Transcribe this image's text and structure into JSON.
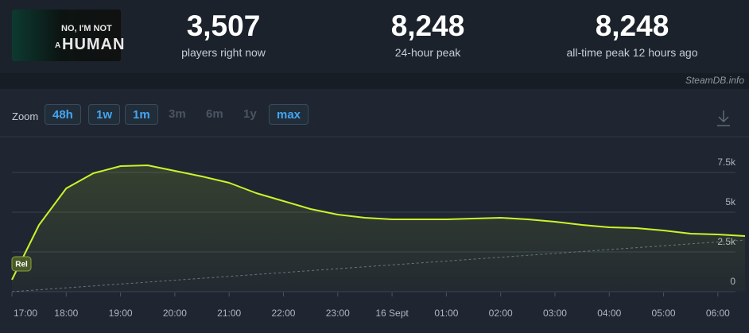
{
  "header": {
    "logo_text": [
      "NO, I'M NOT",
      "A",
      "HUMAN"
    ],
    "stats": [
      {
        "value": "3,507",
        "label": "players right now"
      },
      {
        "value": "8,248",
        "label": "24-hour peak"
      },
      {
        "value": "8,248",
        "label": "all-time peak 12 hours ago"
      }
    ],
    "source": "SteamDB.info"
  },
  "zoom": {
    "label": "Zoom",
    "options": [
      {
        "text": "48h",
        "enabled": true
      },
      {
        "text": "1w",
        "enabled": true
      },
      {
        "text": "1m",
        "enabled": true
      },
      {
        "text": "3m",
        "enabled": false
      },
      {
        "text": "6m",
        "enabled": false
      },
      {
        "text": "1y",
        "enabled": false
      },
      {
        "text": "max",
        "enabled": true
      }
    ]
  },
  "chart_data": {
    "type": "line",
    "categories": [
      "17:00",
      null,
      "18:00",
      null,
      "19:00",
      null,
      "20:00",
      null,
      "21:00",
      null,
      "22:00",
      null,
      "23:00",
      null,
      "16 Sept",
      null,
      "01:00",
      null,
      "02:00",
      null,
      "03:00",
      null,
      "04:00",
      null,
      "05:00",
      null,
      "06:00",
      null
    ],
    "series": [
      {
        "color": "#cdf32b",
        "values": [
          750,
          4200,
          6500,
          7450,
          7900,
          7950,
          7600,
          7250,
          6850,
          6200,
          5700,
          5200,
          4850,
          4650,
          4550,
          4550,
          4550,
          4600,
          4650,
          4550,
          4400,
          4200,
          4050,
          4000,
          3850,
          3650,
          3600,
          3500
        ]
      }
    ],
    "reference": {
      "values": [
        0,
        3250
      ],
      "color": "#6b7480"
    },
    "annotation": "Rel",
    "ylim": [
      0,
      9200
    ],
    "yticks": [
      0,
      {
        "value": 2500,
        "label": "2.5k"
      },
      {
        "value": 5000,
        "label": "5k"
      },
      {
        "value": 7500,
        "label": "7.5k"
      }
    ],
    "grid": true
  }
}
